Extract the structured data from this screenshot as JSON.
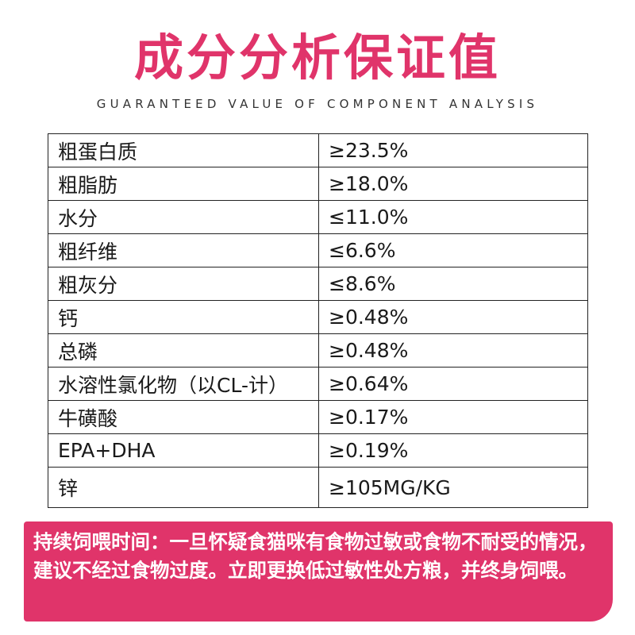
{
  "header": {
    "title": "成分分析保证值",
    "subtitle": "GUARANTEED VALUE OF COMPONENT ANALYSIS"
  },
  "colors": {
    "accent": "#e0346a",
    "border": "#222222",
    "text": "#1a1a1a"
  },
  "table": {
    "rows": [
      {
        "name": "粗蛋白质",
        "value": "≥23.5%"
      },
      {
        "name": "粗脂肪",
        "value": "≥18.0%"
      },
      {
        "name": "水分",
        "value": "≤11.0%"
      },
      {
        "name": "粗纤维",
        "value": "≤6.6%"
      },
      {
        "name": "粗灰分",
        "value": "≤8.6%"
      },
      {
        "name": "钙",
        "value": "≥0.48%"
      },
      {
        "name": "总磷",
        "value": "≥0.48%"
      },
      {
        "name": "水溶性氯化物（以CL-计）",
        "value": "≥0.64%"
      },
      {
        "name": "牛磺酸",
        "value": "≥0.17%"
      },
      {
        "name": "EPA+DHA",
        "value": "≥0.19%"
      },
      {
        "name": "锌",
        "value": "≥105MG/KG"
      }
    ]
  },
  "note": {
    "text": "持续饲喂时间：一旦怀疑食猫咪有食物过敏或食物不耐受的情况，建议不经过食物过度。立即更换低过敏性处方粮，并终身饲喂。"
  }
}
